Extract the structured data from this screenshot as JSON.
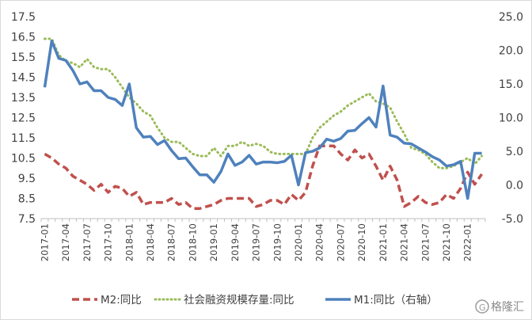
{
  "chart_data": {
    "type": "line",
    "x": [
      "2017-01",
      "2017-02",
      "2017-03",
      "2017-04",
      "2017-05",
      "2017-06",
      "2017-07",
      "2017-08",
      "2017-09",
      "2017-10",
      "2017-11",
      "2017-12",
      "2018-01",
      "2018-02",
      "2018-03",
      "2018-04",
      "2018-05",
      "2018-06",
      "2018-07",
      "2018-08",
      "2018-09",
      "2018-10",
      "2018-11",
      "2018-12",
      "2019-01",
      "2019-02",
      "2019-03",
      "2019-04",
      "2019-05",
      "2019-06",
      "2019-07",
      "2019-08",
      "2019-09",
      "2019-10",
      "2019-11",
      "2019-12",
      "2020-01",
      "2020-02",
      "2020-03",
      "2020-04",
      "2020-05",
      "2020-06",
      "2020-07",
      "2020-08",
      "2020-09",
      "2020-10",
      "2020-11",
      "2020-12",
      "2021-01",
      "2021-02",
      "2021-03",
      "2021-04",
      "2021-05",
      "2021-06",
      "2021-07",
      "2021-08",
      "2021-09",
      "2021-10",
      "2021-11",
      "2021-12",
      "2022-01",
      "2022-02",
      "2022-03"
    ],
    "x_tick_labels": [
      "2017-01",
      "2017-04",
      "2017-07",
      "2017-10",
      "2018-01",
      "2018-04",
      "2018-07",
      "2018-10",
      "2019-01",
      "2019-04",
      "2019-07",
      "2019-10",
      "2020-01",
      "2020-04",
      "2020-07",
      "2020-10",
      "2021-01",
      "2021-04",
      "2021-07",
      "2021-10",
      "2022-01"
    ],
    "y_left": {
      "ticks": [
        "7.5",
        "8.5",
        "9.5",
        "10.5",
        "11.5",
        "12.5",
        "13.5",
        "14.5",
        "15.5",
        "16.5",
        "17.5"
      ],
      "ylim": [
        7.5,
        17.5
      ]
    },
    "y_right": {
      "ticks": [
        "-5.0",
        "0.0",
        "5.0",
        "10.0",
        "15.0",
        "20.0",
        "25.0"
      ],
      "ylim": [
        -5,
        25
      ]
    },
    "series": [
      {
        "name": "M2:同比",
        "axis": "left",
        "color": "#c0504d",
        "style": "dashed",
        "values": [
          10.7,
          10.5,
          10.2,
          10.0,
          9.6,
          9.4,
          9.2,
          8.9,
          9.2,
          8.8,
          9.1,
          9.0,
          8.6,
          8.8,
          8.2,
          8.3,
          8.3,
          8.3,
          8.5,
          8.2,
          8.3,
          8.0,
          8.0,
          8.1,
          8.2,
          8.4,
          8.5,
          8.5,
          8.5,
          8.5,
          8.1,
          8.2,
          8.4,
          8.4,
          8.2,
          8.7,
          8.4,
          8.8,
          10.1,
          11.1,
          11.1,
          11.1,
          10.7,
          10.4,
          10.9,
          10.5,
          10.7,
          10.1,
          9.4,
          10.1,
          9.4,
          8.1,
          8.3,
          8.6,
          8.3,
          8.2,
          8.3,
          8.7,
          8.5,
          9.0,
          9.8,
          9.2,
          9.7
        ]
      },
      {
        "name": "社会融资规模存量:同比",
        "axis": "left",
        "color": "#9bbb59",
        "style": "dotted",
        "values": [
          16.4,
          16.4,
          15.6,
          15.3,
          15.2,
          15.0,
          15.4,
          15.0,
          14.9,
          14.9,
          14.5,
          14.0,
          13.5,
          13.2,
          12.8,
          12.6,
          12.0,
          11.5,
          11.3,
          11.3,
          11.0,
          10.7,
          10.6,
          10.6,
          11.0,
          10.6,
          11.1,
          11.1,
          11.3,
          11.1,
          11.2,
          11.1,
          10.8,
          10.7,
          10.7,
          10.7,
          10.7,
          10.7,
          11.5,
          12.0,
          12.3,
          12.6,
          12.8,
          13.1,
          13.3,
          13.5,
          13.7,
          13.3,
          13.2,
          13.0,
          12.3,
          11.7,
          11.0,
          10.9,
          10.7,
          10.3,
          10.0,
          10.0,
          10.1,
          10.3,
          10.5,
          10.2,
          10.6
        ]
      },
      {
        "name": "M1:同比（右轴）",
        "axis": "right",
        "color": "#4f81bd",
        "style": "solid",
        "values": [
          14.5,
          21.4,
          18.8,
          18.5,
          17.0,
          15.0,
          15.3,
          14.0,
          14.0,
          13.0,
          12.7,
          11.8,
          15.0,
          8.5,
          7.1,
          7.2,
          6.0,
          6.6,
          5.1,
          3.9,
          4.0,
          2.7,
          1.5,
          1.5,
          0.4,
          2.0,
          4.6,
          2.9,
          3.4,
          4.4,
          3.1,
          3.4,
          3.4,
          3.3,
          3.5,
          4.4,
          0.0,
          4.8,
          5.0,
          5.5,
          6.8,
          6.5,
          6.9,
          8.0,
          8.1,
          9.1,
          10.0,
          8.6,
          14.7,
          7.4,
          7.1,
          6.2,
          6.1,
          5.5,
          4.9,
          4.2,
          3.7,
          2.8,
          3.0,
          3.5,
          -2.0,
          4.7,
          4.7
        ]
      }
    ],
    "legend_position": "bottom",
    "grid": false
  },
  "legend": {
    "items": [
      "M2:同比",
      "社会融资规模存量:同比",
      "M1:同比（右轴）"
    ]
  },
  "watermark": {
    "text": "格隆汇"
  }
}
